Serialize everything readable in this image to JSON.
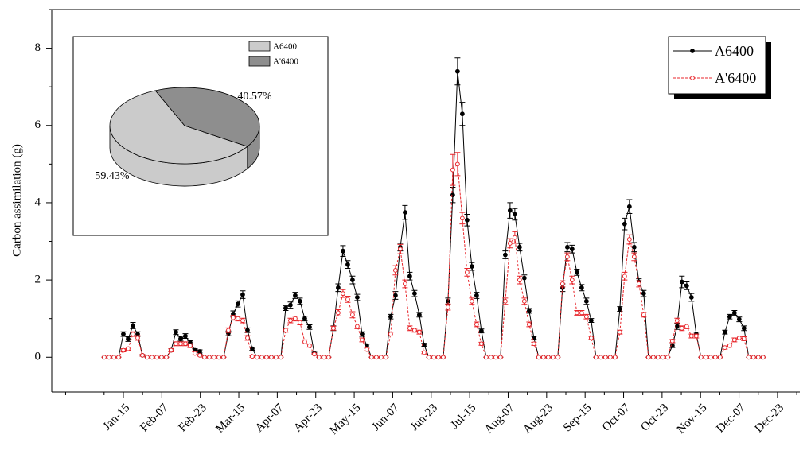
{
  "chart_data": [
    {
      "type": "line",
      "ylabel": "Carbon assimilation (g)",
      "x": [
        0,
        1,
        2,
        3,
        4,
        5,
        6,
        7,
        8,
        9,
        10,
        11,
        12,
        13,
        14,
        15,
        16,
        17,
        18,
        19,
        20,
        21,
        22,
        23,
        24,
        25,
        26,
        27,
        28,
        29,
        30,
        31,
        32,
        33,
        34,
        35,
        36,
        37,
        38,
        39,
        40,
        41,
        42,
        43,
        44,
        45,
        46,
        47,
        48,
        49,
        50,
        51,
        52,
        53,
        54,
        55,
        56,
        57,
        58,
        59,
        60,
        61,
        62,
        63,
        64,
        65,
        66,
        67,
        68,
        69,
        70,
        71,
        72,
        73,
        74,
        75,
        76,
        77,
        78,
        79,
        80,
        81,
        82,
        83,
        84,
        85,
        86,
        87,
        88,
        89,
        90,
        91,
        92,
        93,
        94,
        95,
        96,
        97,
        98,
        99,
        100,
        101,
        102,
        103,
        104,
        105,
        106,
        107,
        108,
        109,
        110,
        111,
        112,
        113,
        114,
        115,
        116,
        117,
        118,
        119,
        120,
        121,
        122,
        123,
        124,
        125,
        126,
        127,
        128,
        129,
        130,
        131,
        132,
        133,
        134,
        135,
        136,
        137,
        138
      ],
      "series": [
        {
          "name": "A6400",
          "color": "#000000",
          "marker": "filled-circle",
          "dash": false,
          "values": [
            0,
            0,
            0,
            0,
            0.6,
            0.47,
            0.82,
            0.6,
            0.05,
            0,
            0,
            0,
            0,
            0,
            0.18,
            0.65,
            0.48,
            0.55,
            0.38,
            0.18,
            0.15,
            0,
            0,
            0,
            0,
            0,
            0.62,
            1.12,
            1.38,
            1.62,
            0.7,
            0.22,
            0,
            0,
            0,
            0,
            0,
            0,
            1.27,
            1.35,
            1.6,
            1.45,
            1.0,
            0.78,
            0.1,
            0,
            0,
            0,
            0.75,
            1.8,
            2.75,
            2.4,
            2.0,
            1.55,
            0.6,
            0.3,
            0,
            0,
            0,
            0,
            1.05,
            1.6,
            2.85,
            3.75,
            2.1,
            1.65,
            1.1,
            0.32,
            0,
            0,
            0,
            0,
            1.45,
            4.2,
            7.4,
            6.3,
            3.55,
            2.35,
            1.6,
            0.68,
            0,
            0,
            0,
            0,
            2.65,
            3.8,
            3.7,
            2.85,
            2.05,
            1.2,
            0.5,
            0,
            0,
            0,
            0,
            0,
            1.8,
            2.85,
            2.8,
            2.2,
            1.8,
            1.45,
            0.95,
            0,
            0,
            0,
            0,
            0,
            1.25,
            3.45,
            3.9,
            2.85,
            1.95,
            1.65,
            0,
            0,
            0,
            0,
            0,
            0.3,
            0.8,
            1.95,
            1.85,
            1.55,
            0.6,
            0,
            0,
            0,
            0,
            0,
            0.65,
            1.05,
            1.15,
            0.98,
            0.75,
            0,
            0,
            0,
            0
          ],
          "errors": [
            0,
            0,
            0,
            0,
            0.06,
            0.06,
            0.08,
            0.06,
            0.02,
            0,
            0,
            0,
            0,
            0,
            0.04,
            0.06,
            0.06,
            0.06,
            0.05,
            0.04,
            0.04,
            0,
            0,
            0,
            0,
            0,
            0.06,
            0.08,
            0.08,
            0.1,
            0.06,
            0.04,
            0,
            0,
            0,
            0,
            0,
            0,
            0.06,
            0.08,
            0.08,
            0.08,
            0.06,
            0.06,
            0.03,
            0,
            0,
            0,
            0.06,
            0.1,
            0.14,
            0.1,
            0.1,
            0.08,
            0.06,
            0.04,
            0,
            0,
            0,
            0,
            0.06,
            0.1,
            0.1,
            0.18,
            0.1,
            0.08,
            0.06,
            0.04,
            0,
            0,
            0,
            0,
            0.08,
            0.2,
            0.35,
            0.3,
            0.15,
            0.1,
            0.08,
            0.05,
            0,
            0,
            0,
            0,
            0.1,
            0.2,
            0.15,
            0.1,
            0.08,
            0.06,
            0.04,
            0,
            0,
            0,
            0,
            0,
            0.1,
            0.12,
            0.1,
            0.08,
            0.08,
            0.08,
            0.05,
            0,
            0,
            0,
            0,
            0,
            0.06,
            0.15,
            0.18,
            0.12,
            0.08,
            0.08,
            0,
            0,
            0,
            0,
            0,
            0.05,
            0.08,
            0.15,
            0.1,
            0.1,
            0.05,
            0,
            0,
            0,
            0,
            0,
            0.05,
            0.06,
            0.06,
            0.06,
            0.06,
            0,
            0,
            0,
            0
          ]
        },
        {
          "name": "A'6400",
          "color": "#e8262b",
          "marker": "open-circle",
          "dash": true,
          "values": [
            0,
            0,
            0,
            0,
            0.18,
            0.22,
            0.6,
            0.5,
            0.05,
            0,
            0,
            0,
            0,
            0,
            0.18,
            0.35,
            0.35,
            0.35,
            0.3,
            0.1,
            0.05,
            0,
            0,
            0,
            0,
            0,
            0.7,
            1.02,
            1.0,
            0.95,
            0.5,
            0.02,
            0,
            0,
            0,
            0,
            0,
            0,
            0.7,
            0.95,
            1.0,
            0.9,
            0.4,
            0.3,
            0.08,
            0,
            0,
            0,
            0.75,
            1.15,
            1.65,
            1.5,
            1.1,
            0.8,
            0.45,
            0.2,
            0,
            0,
            0,
            0,
            0.6,
            2.25,
            2.8,
            1.9,
            0.75,
            0.7,
            0.65,
            0.12,
            0,
            0,
            0,
            0,
            1.3,
            4.85,
            5.0,
            3.6,
            2.2,
            1.45,
            0.85,
            0.35,
            0,
            0,
            0,
            0,
            1.45,
            2.95,
            3.1,
            2.0,
            1.45,
            0.85,
            0.35,
            0,
            0,
            0,
            0,
            0,
            1.9,
            2.6,
            2.0,
            1.15,
            1.15,
            1.05,
            0.5,
            0,
            0,
            0,
            0,
            0,
            0.65,
            2.1,
            3.05,
            2.6,
            1.9,
            1.1,
            0,
            0,
            0,
            0,
            0,
            0.42,
            0.95,
            0.75,
            0.8,
            0.55,
            0.55,
            0,
            0,
            0,
            0,
            0,
            0.25,
            0.3,
            0.45,
            0.5,
            0.48,
            0,
            0,
            0,
            0
          ],
          "errors": [
            0,
            0,
            0,
            0,
            0.04,
            0.04,
            0.06,
            0.06,
            0.02,
            0,
            0,
            0,
            0,
            0,
            0.04,
            0.05,
            0.05,
            0.05,
            0.05,
            0.04,
            0.02,
            0,
            0,
            0,
            0,
            0,
            0.06,
            0.06,
            0.06,
            0.06,
            0.06,
            0.02,
            0,
            0,
            0,
            0,
            0,
            0,
            0.05,
            0.06,
            0.06,
            0.06,
            0.05,
            0.04,
            0.02,
            0,
            0,
            0,
            0.05,
            0.08,
            0.1,
            0.08,
            0.08,
            0.06,
            0.05,
            0.03,
            0,
            0,
            0,
            0,
            0.05,
            0.12,
            0.12,
            0.1,
            0.06,
            0.05,
            0.05,
            0.03,
            0,
            0,
            0,
            0,
            0.08,
            0.4,
            0.3,
            0.15,
            0.1,
            0.08,
            0.06,
            0.04,
            0,
            0,
            0,
            0,
            0.08,
            0.12,
            0.15,
            0.1,
            0.08,
            0.06,
            0.04,
            0,
            0,
            0,
            0,
            0,
            0.08,
            0.1,
            0.1,
            0.06,
            0.06,
            0.06,
            0.04,
            0,
            0,
            0,
            0,
            0,
            0.05,
            0.1,
            0.12,
            0.1,
            0.08,
            0.06,
            0,
            0,
            0,
            0,
            0,
            0.04,
            0.06,
            0.06,
            0.06,
            0.05,
            0.05,
            0,
            0,
            0,
            0,
            0,
            0.04,
            0.04,
            0.05,
            0.05,
            0.05,
            0,
            0,
            0,
            0
          ]
        }
      ],
      "xlim": [
        -11,
        145.7
      ],
      "xticks": [
        {
          "value": 4,
          "label": "Jan-15"
        },
        {
          "value": 12.06,
          "label": "Feb-07"
        },
        {
          "value": 20.12,
          "label": "Feb-23"
        },
        {
          "value": 28.18,
          "label": "Mar-15"
        },
        {
          "value": 36.24,
          "label": "Apr-07"
        },
        {
          "value": 44.3,
          "label": "Apr-23"
        },
        {
          "value": 52.36,
          "label": "May-15"
        },
        {
          "value": 60.42,
          "label": "Jun-07"
        },
        {
          "value": 68.48,
          "label": "Jun-23"
        },
        {
          "value": 76.54,
          "label": "Jul-15"
        },
        {
          "value": 84.6,
          "label": "Aug-07"
        },
        {
          "value": 92.66,
          "label": "Aug-23"
        },
        {
          "value": 100.72,
          "label": "Sep-15"
        },
        {
          "value": 108.78,
          "label": "Oct-07"
        },
        {
          "value": 116.84,
          "label": "Oct-23"
        },
        {
          "value": 124.9,
          "label": "Nov-15"
        },
        {
          "value": 132.96,
          "label": "Dec-07"
        },
        {
          "value": 141.02,
          "label": "Dec-23"
        }
      ],
      "ylim": [
        -0.9,
        9.0
      ],
      "yticks": [
        0,
        2,
        4,
        6,
        8
      ],
      "legend": "upper right"
    },
    {
      "type": "pie",
      "categories": [
        "A6400",
        "A'6400"
      ],
      "values": [
        59.43,
        40.57
      ],
      "value_labels": [
        "59.43%",
        "40.57%"
      ],
      "colors": [
        "#cbcbcb",
        "#8e8e8e"
      ]
    }
  ]
}
